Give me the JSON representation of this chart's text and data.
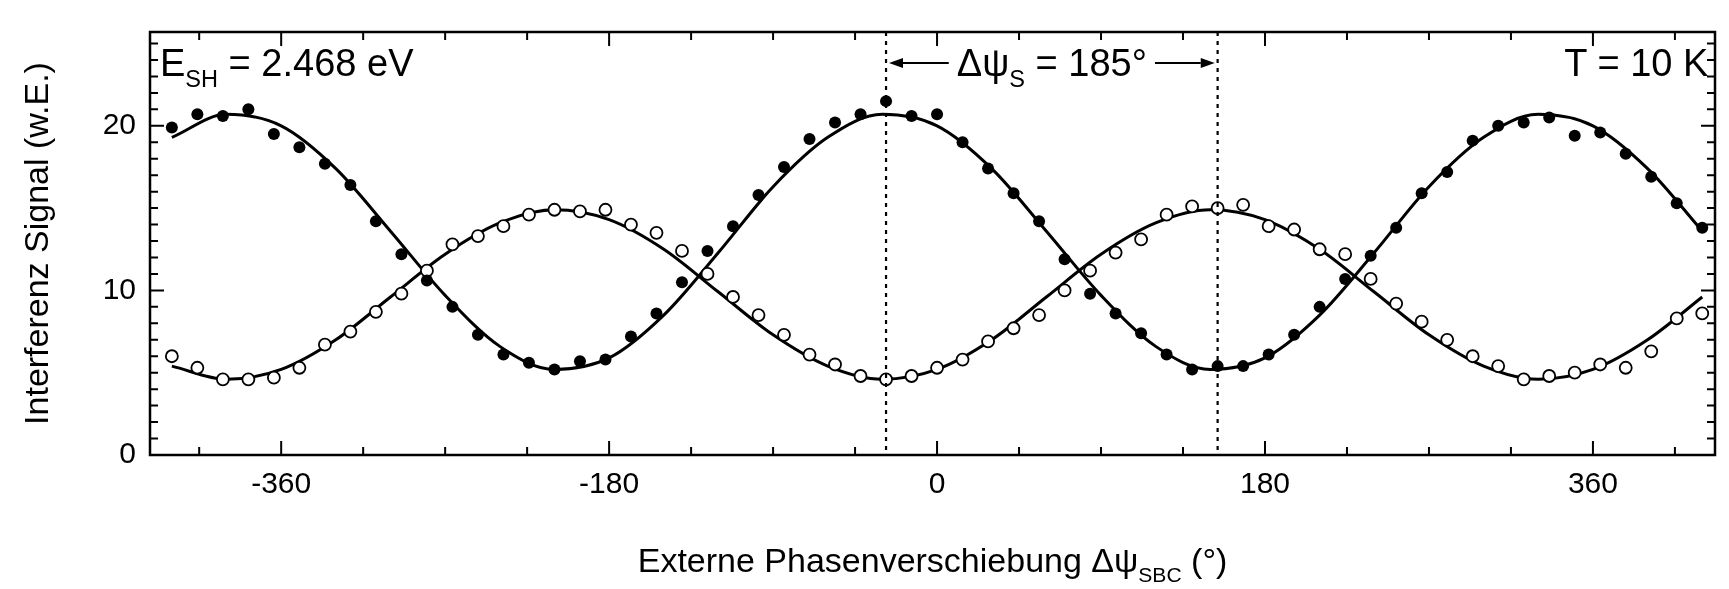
{
  "chart_data": {
    "type": "scatter",
    "xlabel": "Externe Phasenverschiebung Δψ$_{SBC}$ (°)",
    "ylabel": "Interferenz Signal (w.E.)",
    "xlim": [
      -432,
      427
    ],
    "ylim": [
      0,
      25.7
    ],
    "xticks": [
      {
        "value": -405,
        "label": null
      },
      -360,
      {
        "value": -315,
        "label": null
      },
      {
        "value": -270,
        "label": null
      },
      {
        "value": -225,
        "label": null
      },
      -180,
      {
        "value": -135,
        "label": null
      },
      {
        "value": -90,
        "label": null
      },
      {
        "value": -45,
        "label": null
      },
      0,
      {
        "value": 45,
        "label": null
      },
      {
        "value": 90,
        "label": null
      },
      {
        "value": 135,
        "label": null
      },
      180,
      {
        "value": 225,
        "label": null
      },
      {
        "value": 270,
        "label": null
      },
      {
        "value": 315,
        "label": null
      },
      360,
      {
        "value": 405,
        "label": null
      }
    ],
    "yticks": [
      0,
      {
        "value": 1,
        "label": null
      },
      {
        "value": 2,
        "label": null
      },
      {
        "value": 3,
        "label": null
      },
      {
        "value": 4,
        "label": null
      },
      {
        "value": 5,
        "label": null
      },
      {
        "value": 6,
        "label": null
      },
      {
        "value": 7,
        "label": null
      },
      {
        "value": 8,
        "label": null
      },
      {
        "value": 9,
        "label": null
      },
      10,
      {
        "value": 11,
        "label": null
      },
      {
        "value": 12,
        "label": null
      },
      {
        "value": 13,
        "label": null
      },
      {
        "value": 14,
        "label": null
      },
      {
        "value": 15,
        "label": null
      },
      {
        "value": 16,
        "label": null
      },
      {
        "value": 17,
        "label": null
      },
      {
        "value": 18,
        "label": null
      },
      {
        "value": 19,
        "label": null
      },
      20,
      {
        "value": 21,
        "label": null
      },
      {
        "value": 22,
        "label": null
      },
      {
        "value": 23,
        "label": null
      },
      {
        "value": 24,
        "label": null
      },
      {
        "value": 25,
        "label": null
      }
    ],
    "marker": "circle",
    "series": [
      {
        "type": "line",
        "marker": "none",
        "color": "#000000",
        "x": [
          -420,
          -390,
          -360,
          -330,
          -300,
          -270,
          -240,
          -210,
          -180,
          -150,
          -120,
          -90,
          -60,
          -30,
          0,
          30,
          60,
          90,
          120,
          150,
          180,
          210,
          240,
          270,
          300,
          330,
          360,
          390,
          420
        ],
        "values": [
          19.3,
          20.7,
          20.0,
          17.4,
          13.6,
          9.7,
          6.6,
          5.2,
          5.9,
          8.5,
          12.3,
          16.3,
          19.3,
          20.7,
          20.0,
          17.4,
          13.6,
          9.7,
          6.6,
          5.2,
          5.9,
          8.5,
          12.3,
          16.3,
          19.3,
          20.7,
          20.0,
          17.4,
          13.6
        ]
      },
      {
        "type": "line",
        "marker": "none",
        "color": "#000000",
        "x": [
          -420,
          -390,
          -360,
          -330,
          -300,
          -270,
          -240,
          -210,
          -180,
          -150,
          -120,
          -90,
          -60,
          -30,
          0,
          30,
          60,
          90,
          120,
          150,
          180,
          210,
          240,
          270,
          300,
          330,
          360,
          390,
          420
        ],
        "values": [
          5.4,
          4.6,
          5.2,
          7.0,
          9.6,
          12.2,
          14.1,
          14.9,
          14.3,
          12.5,
          9.9,
          7.3,
          5.4,
          4.6,
          5.2,
          7.0,
          9.6,
          12.2,
          14.1,
          14.9,
          14.3,
          12.5,
          9.9,
          7.3,
          5.4,
          4.6,
          5.2,
          7.0,
          9.6
        ]
      },
      {
        "color": "#000000",
        "x": [
          -420,
          -406,
          -392,
          -378,
          -364,
          -350,
          -336,
          -322,
          -308,
          -294,
          -280,
          -266,
          -252,
          -238,
          -224,
          -210,
          -196,
          -182,
          -168,
          -154,
          -140,
          -126,
          -112,
          -98,
          -84,
          -70,
          -56,
          -42,
          -28,
          -14,
          0,
          14,
          28,
          42,
          56,
          70,
          84,
          98,
          112,
          126,
          140,
          154,
          168,
          182,
          196,
          210,
          224,
          238,
          252,
          266,
          280,
          294,
          308,
          322,
          336,
          350,
          364,
          378,
          392,
          406,
          420
        ],
        "values": [
          19.9,
          20.7,
          20.6,
          21.0,
          19.5,
          18.7,
          17.7,
          16.4,
          14.2,
          12.2,
          10.6,
          9.0,
          7.3,
          6.1,
          5.6,
          5.2,
          5.7,
          5.8,
          7.2,
          8.6,
          10.5,
          12.4,
          13.9,
          15.8,
          17.5,
          19.2,
          20.2,
          20.7,
          21.5,
          20.6,
          20.7,
          19.0,
          17.4,
          15.9,
          14.2,
          11.9,
          9.8,
          8.6,
          7.4,
          6.1,
          5.2,
          5.4,
          5.4,
          6.1,
          7.3,
          9.0,
          10.7,
          12.1,
          13.8,
          15.9,
          17.2,
          19.1,
          20.0,
          20.2,
          20.5,
          19.4,
          19.6,
          18.3,
          16.9,
          15.3,
          13.8
        ]
      },
      {
        "color": "#000000",
        "x": [
          -420,
          -406,
          -392,
          -378,
          -364,
          -350,
          -336,
          -322,
          -308,
          -294,
          -280,
          -266,
          -252,
          -238,
          -224,
          -210,
          -196,
          -182,
          -168,
          -154,
          -140,
          -126,
          -112,
          -98,
          -84,
          -70,
          -56,
          -42,
          -28,
          -14,
          0,
          14,
          28,
          42,
          56,
          70,
          84,
          98,
          112,
          126,
          140,
          154,
          168,
          182,
          196,
          210,
          224,
          238,
          252,
          266,
          280,
          294,
          308,
          322,
          336,
          350,
          364,
          378,
          392,
          406,
          420
        ],
        "values": [
          6.0,
          5.3,
          4.6,
          4.6,
          4.7,
          5.3,
          6.7,
          7.5,
          8.7,
          9.8,
          11.2,
          12.8,
          13.3,
          13.9,
          14.6,
          14.9,
          14.8,
          14.9,
          14.0,
          13.5,
          12.4,
          11.0,
          9.6,
          8.5,
          7.3,
          6.1,
          5.5,
          4.8,
          4.6,
          4.8,
          5.3,
          5.8,
          6.9,
          7.7,
          8.5,
          10.0,
          11.2,
          12.3,
          13.1,
          14.6,
          15.1,
          15.0,
          15.2,
          13.9,
          13.7,
          12.5,
          12.2,
          10.7,
          9.2,
          8.1,
          7.0,
          6.0,
          5.4,
          4.6,
          4.8,
          5.0,
          5.5,
          5.3,
          6.3,
          8.3,
          8.6
        ]
      }
    ],
    "ref_lines": [
      {
        "axis": "x",
        "value": -28,
        "line_style": "dotted"
      },
      {
        "axis": "x",
        "value": 154,
        "line_style": "dotted"
      }
    ],
    "annotations": [
      "E$_{SH}$ = 2.468 eV",
      "T = 10 K",
      "Δψ$_{S}$ = 185°"
    ]
  }
}
